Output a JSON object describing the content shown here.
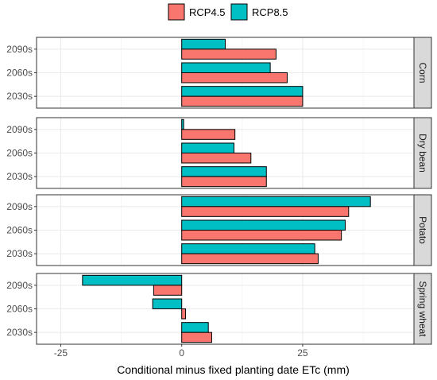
{
  "chart_data": {
    "type": "bar",
    "orientation": "horizontal",
    "xlabel": "Conditional minus fixed planting date ETc (mm)",
    "xlim": [
      -30,
      48
    ],
    "xticks": [
      -25,
      0,
      25
    ],
    "grid": true,
    "legend_position": "top",
    "categories": [
      "2090s",
      "2060s",
      "2030s"
    ],
    "series": [
      {
        "name": "RCP4.5",
        "color": "#F8766D"
      },
      {
        "name": "RCP8.5",
        "color": "#00BFC4"
      }
    ],
    "panels": [
      {
        "label": "Corn",
        "values": {
          "RCP4.5": [
            19.5,
            21.8,
            25.0
          ],
          "RCP8.5": [
            9.0,
            18.3,
            25.0
          ]
        }
      },
      {
        "label": "Dry bean",
        "values": {
          "RCP4.5": [
            11.0,
            14.3,
            17.5
          ],
          "RCP8.5": [
            0.4,
            10.8,
            17.5
          ]
        }
      },
      {
        "label": "Potato",
        "values": {
          "RCP4.5": [
            34.5,
            33.0,
            28.2
          ],
          "RCP8.5": [
            39.0,
            33.8,
            27.5
          ]
        }
      },
      {
        "label": "Spring wheat",
        "values": {
          "RCP4.5": [
            -5.8,
            0.8,
            6.2
          ],
          "RCP8.5": [
            -20.5,
            -6.0,
            5.5
          ]
        }
      }
    ]
  }
}
